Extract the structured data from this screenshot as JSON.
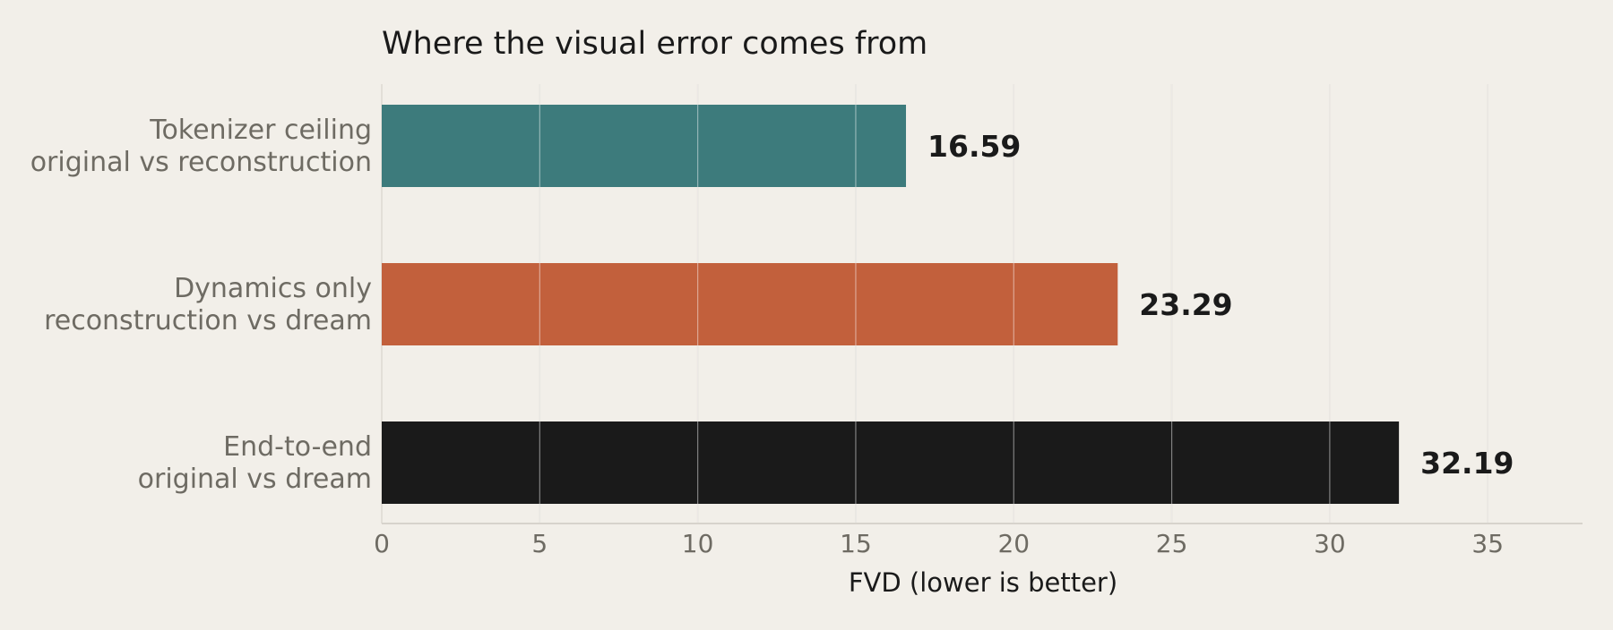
{
  "chart_data": {
    "type": "bar",
    "orientation": "horizontal",
    "title": "Where the visual error comes from",
    "xlabel": "FVD  (lower is better)",
    "ylabel": "",
    "xlim": [
      0,
      38
    ],
    "x_ticks": [
      0,
      5,
      10,
      15,
      20,
      25,
      30,
      35
    ],
    "grid": "vertical",
    "categories": [
      [
        "Tokenizer ceiling",
        "original vs reconstruction"
      ],
      [
        "Dynamics only",
        "reconstruction vs dream"
      ],
      [
        "End-to-end",
        "original vs dream"
      ]
    ],
    "values": [
      16.59,
      23.29,
      32.19
    ],
    "value_labels": [
      "16.59",
      "23.29",
      "32.19"
    ],
    "colors": [
      "#3d7b7c",
      "#c2603c",
      "#1a1a1a"
    ]
  },
  "style": {
    "background": "#f2efe9",
    "grid_color": "#dcd8d1",
    "axis_color": "#d7d3cc",
    "muted_text": "#6e6b63",
    "dark_text": "#1a1a1a"
  }
}
